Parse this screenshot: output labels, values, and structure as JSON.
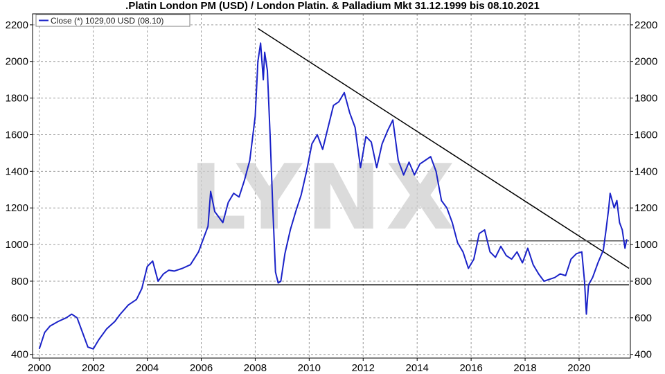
{
  "chart_data": {
    "type": "line",
    "title": ".Platin London PM (USD) / London Platin. & Palladium Mkt 31.12.1999 bis 08.10.2021",
    "legend": "Close (*) 1029,00 USD (08.10)",
    "watermark": "LYNX",
    "ylim": [
      380,
      2260
    ],
    "xlim": [
      1999.75,
      2021.9
    ],
    "yticks": [
      400,
      600,
      800,
      1000,
      1200,
      1400,
      1600,
      1800,
      2000,
      2200
    ],
    "xticks": [
      2000,
      2002,
      2004,
      2006,
      2008,
      2010,
      2012,
      2014,
      2016,
      2018,
      2020
    ],
    "grid": true,
    "legend_position": "top-left",
    "series": [
      {
        "name": "Close (*) 1029,00 USD (08.10)",
        "color": "#1a22c8",
        "points": [
          [
            2000.0,
            430
          ],
          [
            2000.2,
            520
          ],
          [
            2000.4,
            555
          ],
          [
            2000.7,
            580
          ],
          [
            2001.0,
            600
          ],
          [
            2001.2,
            620
          ],
          [
            2001.4,
            600
          ],
          [
            2001.6,
            520
          ],
          [
            2001.8,
            440
          ],
          [
            2002.0,
            430
          ],
          [
            2002.2,
            480
          ],
          [
            2002.5,
            540
          ],
          [
            2002.8,
            580
          ],
          [
            2003.0,
            620
          ],
          [
            2003.3,
            670
          ],
          [
            2003.6,
            700
          ],
          [
            2003.8,
            760
          ],
          [
            2004.0,
            880
          ],
          [
            2004.2,
            910
          ],
          [
            2004.4,
            800
          ],
          [
            2004.6,
            840
          ],
          [
            2004.8,
            860
          ],
          [
            2005.0,
            855
          ],
          [
            2005.3,
            870
          ],
          [
            2005.6,
            890
          ],
          [
            2005.9,
            960
          ],
          [
            2006.1,
            1040
          ],
          [
            2006.25,
            1100
          ],
          [
            2006.35,
            1290
          ],
          [
            2006.5,
            1180
          ],
          [
            2006.65,
            1150
          ],
          [
            2006.8,
            1120
          ],
          [
            2007.0,
            1230
          ],
          [
            2007.2,
            1280
          ],
          [
            2007.4,
            1260
          ],
          [
            2007.6,
            1350
          ],
          [
            2007.8,
            1460
          ],
          [
            2008.0,
            1700
          ],
          [
            2008.1,
            2000
          ],
          [
            2008.2,
            2100
          ],
          [
            2008.3,
            1900
          ],
          [
            2008.35,
            2050
          ],
          [
            2008.45,
            1950
          ],
          [
            2008.55,
            1600
          ],
          [
            2008.65,
            1200
          ],
          [
            2008.75,
            850
          ],
          [
            2008.85,
            790
          ],
          [
            2008.95,
            800
          ],
          [
            2009.1,
            950
          ],
          [
            2009.3,
            1080
          ],
          [
            2009.5,
            1180
          ],
          [
            2009.7,
            1270
          ],
          [
            2009.9,
            1400
          ],
          [
            2010.1,
            1550
          ],
          [
            2010.3,
            1600
          ],
          [
            2010.5,
            1520
          ],
          [
            2010.7,
            1640
          ],
          [
            2010.9,
            1760
          ],
          [
            2011.1,
            1780
          ],
          [
            2011.3,
            1830
          ],
          [
            2011.5,
            1720
          ],
          [
            2011.7,
            1640
          ],
          [
            2011.9,
            1420
          ],
          [
            2012.1,
            1590
          ],
          [
            2012.3,
            1560
          ],
          [
            2012.5,
            1420
          ],
          [
            2012.7,
            1550
          ],
          [
            2012.9,
            1620
          ],
          [
            2013.1,
            1680
          ],
          [
            2013.3,
            1460
          ],
          [
            2013.5,
            1380
          ],
          [
            2013.7,
            1450
          ],
          [
            2013.9,
            1380
          ],
          [
            2014.1,
            1440
          ],
          [
            2014.3,
            1460
          ],
          [
            2014.5,
            1480
          ],
          [
            2014.7,
            1400
          ],
          [
            2014.9,
            1240
          ],
          [
            2015.1,
            1200
          ],
          [
            2015.3,
            1120
          ],
          [
            2015.5,
            1010
          ],
          [
            2015.7,
            960
          ],
          [
            2015.9,
            870
          ],
          [
            2016.1,
            920
          ],
          [
            2016.3,
            1060
          ],
          [
            2016.5,
            1080
          ],
          [
            2016.7,
            960
          ],
          [
            2016.9,
            930
          ],
          [
            2017.1,
            990
          ],
          [
            2017.3,
            940
          ],
          [
            2017.5,
            920
          ],
          [
            2017.7,
            960
          ],
          [
            2017.9,
            900
          ],
          [
            2018.1,
            980
          ],
          [
            2018.3,
            890
          ],
          [
            2018.5,
            840
          ],
          [
            2018.7,
            800
          ],
          [
            2018.9,
            810
          ],
          [
            2019.1,
            820
          ],
          [
            2019.3,
            840
          ],
          [
            2019.5,
            830
          ],
          [
            2019.7,
            920
          ],
          [
            2019.9,
            950
          ],
          [
            2020.1,
            960
          ],
          [
            2020.2,
            800
          ],
          [
            2020.27,
            620
          ],
          [
            2020.35,
            780
          ],
          [
            2020.5,
            820
          ],
          [
            2020.7,
            900
          ],
          [
            2020.9,
            970
          ],
          [
            2021.0,
            1080
          ],
          [
            2021.1,
            1200
          ],
          [
            2021.15,
            1280
          ],
          [
            2021.3,
            1200
          ],
          [
            2021.4,
            1240
          ],
          [
            2021.5,
            1120
          ],
          [
            2021.6,
            1080
          ],
          [
            2021.7,
            980
          ],
          [
            2021.77,
            1029
          ]
        ]
      }
    ],
    "trend_lines": [
      {
        "from": [
          2008.1,
          2180
        ],
        "to": [
          2021.85,
          870
        ],
        "color": "#000000"
      },
      {
        "from": [
          2004.0,
          780
        ],
        "to": [
          2021.85,
          780
        ],
        "color": "#000000"
      },
      {
        "from": [
          2015.9,
          1020
        ],
        "to": [
          2021.85,
          1020
        ],
        "color": "#555555"
      }
    ]
  }
}
